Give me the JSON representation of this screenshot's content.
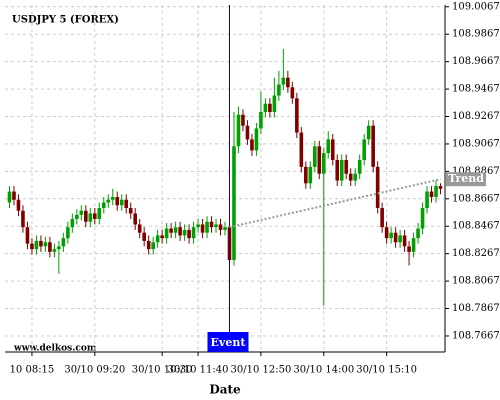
{
  "chart_data": {
    "type": "candlestick",
    "title": "USDJPY 5 (FOREX)",
    "x_label": "Date",
    "watermark": "www.delkos.com",
    "up_color": "#00a000",
    "down_color": "#800000",
    "grid": true,
    "xlim": [
      -1,
      97
    ],
    "ylim": [
      108.755,
      109.008
    ],
    "yticks": [
      108.7667,
      108.7867,
      108.8067,
      108.8267,
      108.8467,
      108.8667,
      108.8867,
      108.9067,
      108.9267,
      108.9467,
      108.9667,
      108.9867,
      109.0067
    ],
    "xticks": [
      {
        "value": 5,
        "label": "10 08:15"
      },
      {
        "value": 19,
        "label": "30/10 09:20"
      },
      {
        "value": 34,
        "label": "30/10 10:30"
      },
      {
        "value": 42,
        "label": "30/10 11:40"
      },
      {
        "value": 56,
        "label": "30/10 12:50"
      },
      {
        "value": 70,
        "label": "30/10 14:00"
      },
      {
        "value": 84,
        "label": "30/10 15:10"
      }
    ],
    "open": [
      108.864,
      108.872,
      108.866,
      108.858,
      108.846,
      108.834,
      108.83,
      108.836,
      108.832,
      108.835,
      108.828,
      108.83,
      108.832,
      108.838,
      108.846,
      108.852,
      108.855,
      108.858,
      108.85,
      108.856,
      108.852,
      108.86,
      108.864,
      108.866,
      108.868,
      108.862,
      108.866,
      108.86,
      108.856,
      108.848,
      108.842,
      108.836,
      108.83,
      108.835,
      108.84,
      108.838,
      108.845,
      108.842,
      108.846,
      108.84,
      108.844,
      108.838,
      108.846,
      108.848,
      108.842,
      108.85,
      108.846,
      108.848,
      108.844,
      108.846,
      108.822,
      108.905,
      108.928,
      108.92,
      108.91,
      108.902,
      108.918,
      108.93,
      108.936,
      108.93,
      108.942,
      108.95,
      108.955,
      108.948,
      108.94,
      108.915,
      108.89,
      108.878,
      108.89,
      108.905,
      108.885,
      108.9,
      108.91,
      108.895,
      108.88,
      108.895,
      108.885,
      108.88,
      108.885,
      108.895,
      108.91,
      108.92,
      108.89,
      108.86,
      108.846,
      108.838,
      108.842,
      108.835,
      108.84,
      108.832,
      108.828,
      108.838,
      108.845,
      108.86,
      108.872,
      108.868,
      108.876
    ],
    "high": [
      108.876,
      108.876,
      108.87,
      108.862,
      108.85,
      108.838,
      108.84,
      108.84,
      108.839,
      108.839,
      108.834,
      108.836,
      108.842,
      108.85,
      108.856,
      108.859,
      108.862,
      108.862,
      108.86,
      108.86,
      108.864,
      108.868,
      108.87,
      108.874,
      108.872,
      108.87,
      108.87,
      108.864,
      108.86,
      108.852,
      108.846,
      108.84,
      108.839,
      108.844,
      108.844,
      108.849,
      108.849,
      108.85,
      108.85,
      108.848,
      108.848,
      108.85,
      108.852,
      108.852,
      108.854,
      108.854,
      108.852,
      108.852,
      108.85,
      108.85,
      108.93,
      108.934,
      108.932,
      108.924,
      108.914,
      108.922,
      108.945,
      108.94,
      108.94,
      108.955,
      108.96,
      108.976,
      108.96,
      108.952,
      108.944,
      108.919,
      108.894,
      108.894,
      108.909,
      108.909,
      108.904,
      108.916,
      108.914,
      108.899,
      108.899,
      108.899,
      108.889,
      108.889,
      108.899,
      108.914,
      108.924,
      108.924,
      108.894,
      108.864,
      108.85,
      108.846,
      108.846,
      108.844,
      108.844,
      108.836,
      108.842,
      108.849,
      108.864,
      108.876,
      108.876,
      108.88,
      108.878
    ],
    "low": [
      108.86,
      108.862,
      108.854,
      108.842,
      108.83,
      108.826,
      108.826,
      108.828,
      108.828,
      108.824,
      108.824,
      108.812,
      108.828,
      108.834,
      108.842,
      108.848,
      108.851,
      108.846,
      108.846,
      108.848,
      108.848,
      108.856,
      108.86,
      108.862,
      108.858,
      108.858,
      108.856,
      108.852,
      108.844,
      108.838,
      108.832,
      108.826,
      108.826,
      108.831,
      108.834,
      108.834,
      108.838,
      108.838,
      108.836,
      108.836,
      108.834,
      108.834,
      108.842,
      108.838,
      108.838,
      108.842,
      108.842,
      108.84,
      108.84,
      108.795,
      108.818,
      108.9,
      108.916,
      108.906,
      108.898,
      108.898,
      108.914,
      108.926,
      108.926,
      108.926,
      108.938,
      108.946,
      108.944,
      108.936,
      108.911,
      108.886,
      108.874,
      108.874,
      108.886,
      108.881,
      108.789,
      108.896,
      108.891,
      108.876,
      108.876,
      108.881,
      108.876,
      108.876,
      108.881,
      108.891,
      108.906,
      108.886,
      108.856,
      108.842,
      108.834,
      108.834,
      108.831,
      108.831,
      108.828,
      108.818,
      108.824,
      108.834,
      108.841,
      108.856,
      108.864,
      108.864,
      108.87
    ],
    "close": [
      108.872,
      108.866,
      108.858,
      108.846,
      108.834,
      108.83,
      108.836,
      108.832,
      108.835,
      108.828,
      108.83,
      108.832,
      108.838,
      108.846,
      108.852,
      108.855,
      108.858,
      108.85,
      108.856,
      108.852,
      108.86,
      108.864,
      108.866,
      108.868,
      108.862,
      108.866,
      108.86,
      108.856,
      108.848,
      108.842,
      108.836,
      108.83,
      108.835,
      108.84,
      108.838,
      108.845,
      108.842,
      108.846,
      108.84,
      108.844,
      108.838,
      108.846,
      108.848,
      108.842,
      108.85,
      108.846,
      108.848,
      108.844,
      108.846,
      108.822,
      108.905,
      108.928,
      108.92,
      108.91,
      108.902,
      108.918,
      108.93,
      108.936,
      108.93,
      108.942,
      108.95,
      108.955,
      108.948,
      108.94,
      108.915,
      108.89,
      108.878,
      108.89,
      108.905,
      108.885,
      108.9,
      108.91,
      108.895,
      108.88,
      108.895,
      108.885,
      108.88,
      108.885,
      108.895,
      108.91,
      108.92,
      108.89,
      108.86,
      108.846,
      108.838,
      108.842,
      108.835,
      108.84,
      108.832,
      108.828,
      108.838,
      108.845,
      108.86,
      108.872,
      108.868,
      108.876,
      108.874
    ],
    "event": {
      "label": "Event",
      "x": 49,
      "color": "#0000ff"
    },
    "trend": {
      "label": "Trend",
      "x": [
        49,
        96
      ],
      "values": [
        108.846,
        108.881
      ],
      "color": "#999999"
    }
  }
}
